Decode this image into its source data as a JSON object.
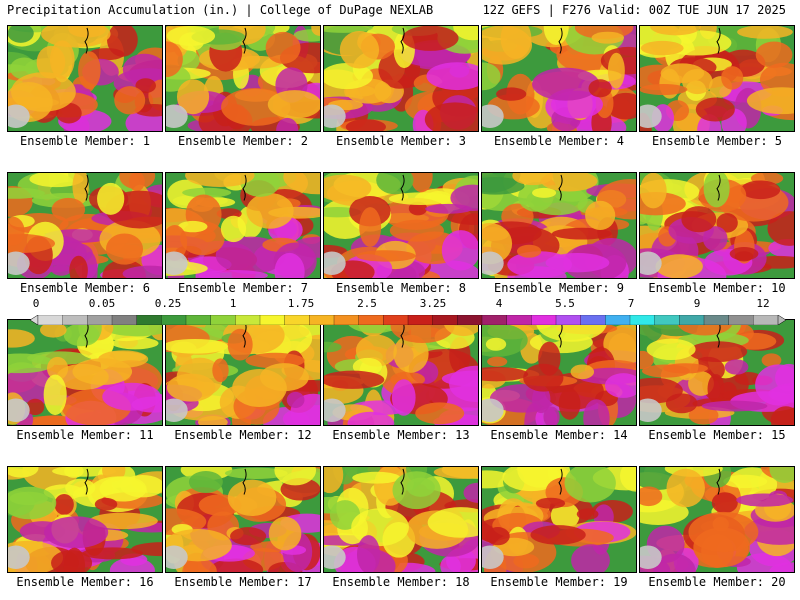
{
  "header": {
    "left_title": "Precipitation Accumulation (in.) | College of DuPage NEXLAB",
    "right_title": "12Z GEFS | F276 Valid: 00Z TUE JUN 17 2025"
  },
  "panels": [
    {
      "caption": "Ensemble Member: 1"
    },
    {
      "caption": "Ensemble Member: 2"
    },
    {
      "caption": "Ensemble Member: 3"
    },
    {
      "caption": "Ensemble Member: 4"
    },
    {
      "caption": "Ensemble Member: 5"
    },
    {
      "caption": "Ensemble Member: 6"
    },
    {
      "caption": "Ensemble Member: 7"
    },
    {
      "caption": "Ensemble Member: 8"
    },
    {
      "caption": "Ensemble Member: 9"
    },
    {
      "caption": "Ensemble Member: 10"
    },
    {
      "caption": "Ensemble Member: 11"
    },
    {
      "caption": "Ensemble Member: 12"
    },
    {
      "caption": "Ensemble Member: 13"
    },
    {
      "caption": "Ensemble Member: 14"
    },
    {
      "caption": "Ensemble Member: 15"
    },
    {
      "caption": "Ensemble Member: 16"
    },
    {
      "caption": "Ensemble Member: 17"
    },
    {
      "caption": "Ensemble Member: 18"
    },
    {
      "caption": "Ensemble Member: 19"
    },
    {
      "caption": "Ensemble Member: 20"
    }
  ],
  "colorbar": {
    "tick_labels": [
      "0",
      "0.05",
      "0.25",
      "1",
      "1.75",
      "2.5",
      "3.25",
      "4",
      "5.5",
      "7",
      "9",
      "12"
    ],
    "colors": [
      "#d8d8d8",
      "#bdbdbd",
      "#a0a0a0",
      "#808080",
      "#2f7a2f",
      "#3d9a3d",
      "#5fb53a",
      "#8fd23a",
      "#c8e83a",
      "#f6f62e",
      "#f8d52a",
      "#f6b424",
      "#f39020",
      "#ee6a1e",
      "#e0401c",
      "#c8201a",
      "#a81820",
      "#8c1430",
      "#a0206a",
      "#c026a8",
      "#e030e0",
      "#b050f0",
      "#6a70f0",
      "#40b0f0",
      "#30e8e8",
      "#40c8c0",
      "#40a8a8",
      "#6a8a8a",
      "#909090",
      "#b8b8b8"
    ]
  }
}
